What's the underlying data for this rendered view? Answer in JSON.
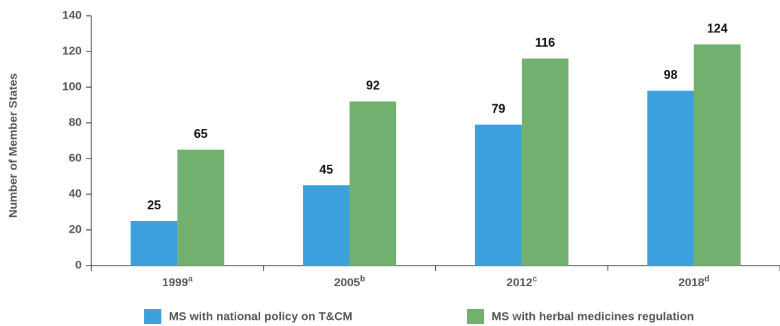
{
  "chart_data": {
    "type": "bar",
    "y_label": "Number of Member States",
    "categories": [
      "1999",
      "2005",
      "2012",
      "2018"
    ],
    "category_notes": [
      "a",
      "b",
      "c",
      "d"
    ],
    "series": [
      {
        "name": "MS with national policy on T&CM",
        "color": "#3ba0dc",
        "values": [
          25,
          45,
          79,
          98
        ]
      },
      {
        "name": "MS with herbal medicines regulation",
        "color": "#72b06f",
        "values": [
          65,
          92,
          116,
          124
        ]
      }
    ],
    "ylim": [
      0,
      140
    ],
    "yticks": [
      0,
      20,
      40,
      60,
      80,
      100,
      120,
      140
    ]
  }
}
